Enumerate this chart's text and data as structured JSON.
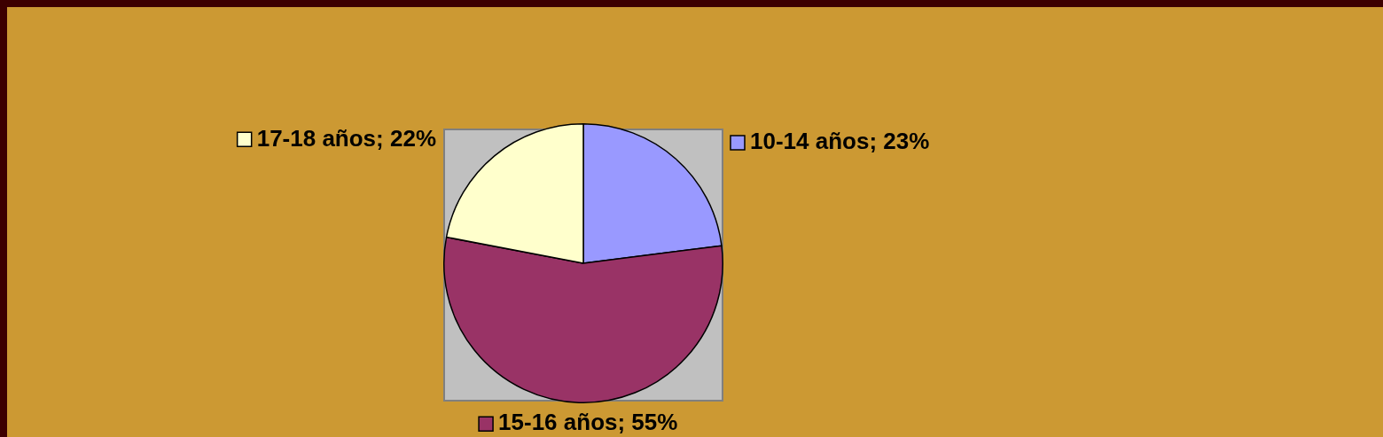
{
  "chart_data": {
    "type": "pie",
    "categories": [
      "10-14 años",
      "15-16 años",
      "17-18 años"
    ],
    "values": [
      23,
      55,
      22
    ],
    "colors": [
      "#9999ff",
      "#993366",
      "#ffffcc"
    ],
    "value_labels": [
      "23%",
      "55%",
      "22%"
    ],
    "legend": "bottom left"
  }
}
